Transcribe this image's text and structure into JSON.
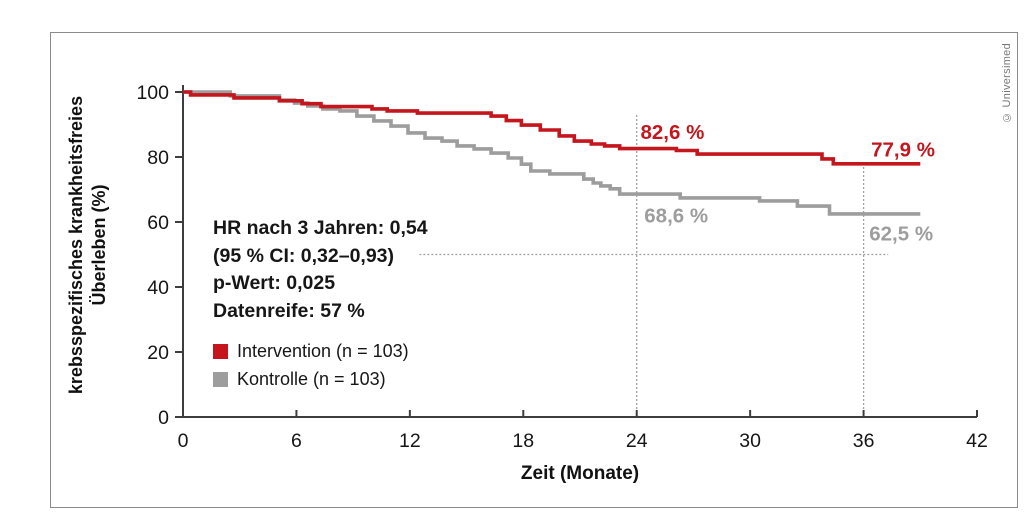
{
  "colors": {
    "intervention": "#c4161c",
    "kontrolle": "#9d9d9d",
    "axis": "#3d3d3d",
    "tick_label": "#161616",
    "reference_dotted": "#a0a0a0",
    "panel_border": "#8a8a8a"
  },
  "axis_titles": {
    "y_line1": "krebsspezifisches krankheitsfreies",
    "y_line2": "Überleben (%)",
    "x": "Zeit (Monate)"
  },
  "stats": {
    "hr": "HR nach 3 Jahren: 0,54",
    "ci": "(95 % CI: 0,32–0,93)",
    "p": "p-Wert: 0,025",
    "maturity": "Datenreife: 57 %"
  },
  "legend": [
    {
      "label": "Intervention (n = 103)",
      "color": "#c4161c"
    },
    {
      "label": "Kontrolle (n = 103)",
      "color": "#9d9d9d"
    }
  ],
  "copyright": "© Universimed",
  "chart_data": {
    "type": "line",
    "subtype": "kaplan-meier-step",
    "title": "",
    "xlabel": "Zeit (Monate)",
    "ylabel": "krebsspezifisches krankheitsfreies Überleben (%)",
    "xlim": [
      0,
      42
    ],
    "ylim": [
      0,
      100
    ],
    "x_ticks": [
      0,
      6,
      12,
      18,
      24,
      30,
      36,
      42
    ],
    "y_ticks": [
      0,
      20,
      40,
      60,
      80,
      100
    ],
    "grid": false,
    "legend_position": "inside-left",
    "series": [
      {
        "name": "Intervention (n = 103)",
        "n": 103,
        "color": "#c4161c",
        "points": [
          [
            0,
            100
          ],
          [
            0.4,
            99.1
          ],
          [
            2.7,
            98.2
          ],
          [
            5.1,
            97.3
          ],
          [
            6.3,
            96.4
          ],
          [
            7.3,
            95.5
          ],
          [
            10,
            94.8
          ],
          [
            10.8,
            94.2
          ],
          [
            12.4,
            93.5
          ],
          [
            16.3,
            92.6
          ],
          [
            17.1,
            91.2
          ],
          [
            17.9,
            89.8
          ],
          [
            18.9,
            88.3
          ],
          [
            19.9,
            86.5
          ],
          [
            20.7,
            84.9
          ],
          [
            21.6,
            84.0
          ],
          [
            22.3,
            83.4
          ],
          [
            23.1,
            82.6
          ],
          [
            26.1,
            82.0
          ],
          [
            27.2,
            80.9
          ],
          [
            33.8,
            79.4
          ],
          [
            34.4,
            77.9
          ],
          [
            39,
            77.9
          ]
        ]
      },
      {
        "name": "Kontrolle (n = 103)",
        "n": 103,
        "color": "#9d9d9d",
        "points": [
          [
            0,
            100
          ],
          [
            2.5,
            98.8
          ],
          [
            5.1,
            97.5
          ],
          [
            5.9,
            96.6
          ],
          [
            6.6,
            95.7
          ],
          [
            7.4,
            94.8
          ],
          [
            8.3,
            94.2
          ],
          [
            9.2,
            92.6
          ],
          [
            10.1,
            91.1
          ],
          [
            11,
            89.5
          ],
          [
            11.9,
            87.4
          ],
          [
            12.8,
            85.8
          ],
          [
            13.7,
            84.9
          ],
          [
            14.5,
            83.4
          ],
          [
            15.4,
            82.5
          ],
          [
            16.3,
            81.2
          ],
          [
            17.2,
            79.7
          ],
          [
            17.9,
            77.8
          ],
          [
            18.4,
            75.7
          ],
          [
            19.4,
            74.8
          ],
          [
            21.2,
            73.2
          ],
          [
            21.7,
            72.0
          ],
          [
            22.1,
            71.1
          ],
          [
            22.6,
            70.2
          ],
          [
            23.1,
            68.6
          ],
          [
            26.3,
            67.4
          ],
          [
            30.5,
            66.5
          ],
          [
            32.5,
            64.9
          ],
          [
            34.2,
            62.5
          ],
          [
            39,
            62.5
          ]
        ]
      }
    ],
    "annotations": [
      {
        "text": "82,6 %",
        "x": 24.2,
        "y": 85.6,
        "color": "#c4161c"
      },
      {
        "text": "68,6 %",
        "x": 24.4,
        "y": 59.8,
        "color": "#9d9d9d"
      },
      {
        "text": "77,9 %",
        "x": 36.4,
        "y": 80.2,
        "color": "#c4161c"
      },
      {
        "text": "62,5 %",
        "x": 36.3,
        "y": 54.3,
        "color": "#9d9d9d"
      }
    ],
    "reference_lines": [
      {
        "type": "h",
        "y": 50,
        "x1": 12.5,
        "x2": 37.3
      },
      {
        "type": "v",
        "x": 24,
        "y1": 0,
        "y2": 93.0
      },
      {
        "type": "v",
        "x": 36,
        "y1": 0,
        "y2": 78.6
      }
    ]
  }
}
